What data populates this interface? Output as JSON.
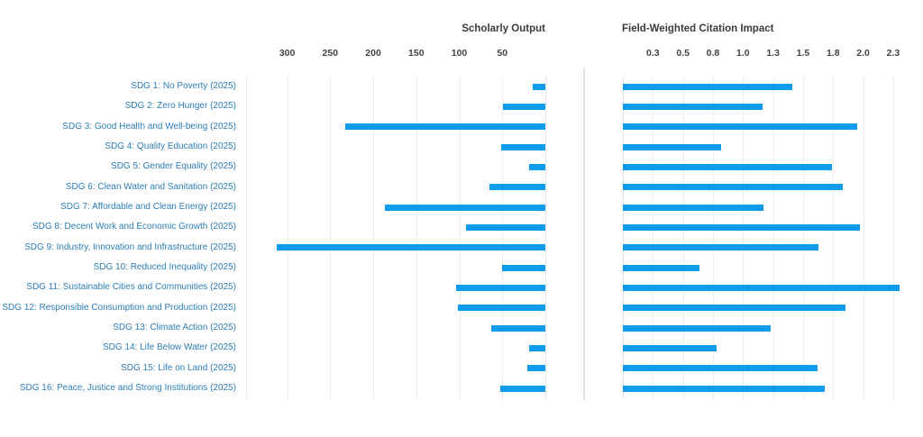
{
  "page": {
    "background": "#ffffff"
  },
  "colors": {
    "bar": "#0c9ceb",
    "category_label": "#2d7db4",
    "axis_text": "#3b3b3b",
    "gridline": "#ededed",
    "separator": "#e0e0e0"
  },
  "chart_data": {
    "type": "bar",
    "orientation": "horizontal",
    "grid": true,
    "legend": "none",
    "categories": [
      "SDG 1: No Poverty (2025)",
      "SDG 2: Zero Hunger (2025)",
      "SDG 3: Good Health and Well-being (2025)",
      "SDG 4: Quality Education (2025)",
      "SDG 5: Gender Equality (2025)",
      "SDG 6: Clean Water and Sanitation (2025)",
      "SDG 7: Affordable and Clean Energy (2025)",
      "SDG 8: Decent Work and Economic Growth (2025)",
      "SDG 9: Industry, Innovation and Infrastructure (2025)",
      "SDG 10: Reduced Inequality (2025)",
      "SDG 11: Sustainable Cities and Communities (2025)",
      "SDG 12: Responsible Consumption and Production (2025)",
      "SDG 13: Climate Action (2025)",
      "SDG 14: Life Below Water (2025)",
      "SDG 15: Life on Land (2025)",
      "SDG 16: Peace, Justice and Strong Institutions (2025)"
    ],
    "series": [
      {
        "name": "Scholarly Output",
        "axis_reversed": true,
        "xlim": [
          0,
          350
        ],
        "ticks": [
          {
            "label": "300",
            "value": 300
          },
          {
            "label": "250",
            "value": 250
          },
          {
            "label": "200",
            "value": 200
          },
          {
            "label": "150",
            "value": 150
          },
          {
            "label": "100",
            "value": 100
          },
          {
            "label": "50",
            "value": 50
          }
        ],
        "values": [
          15,
          49,
          233,
          51,
          19,
          65,
          186,
          92,
          312,
          50,
          104,
          102,
          63,
          19,
          21,
          52
        ]
      },
      {
        "name": "Field-Weighted Citation Impact",
        "axis_reversed": false,
        "xlim": [
          0,
          2.4
        ],
        "ticks": [
          {
            "label": "0.3",
            "value": 0.25
          },
          {
            "label": "0.5",
            "value": 0.5
          },
          {
            "label": "0.8",
            "value": 0.75
          },
          {
            "label": "1.0",
            "value": 1.0
          },
          {
            "label": "1.3",
            "value": 1.25
          },
          {
            "label": "1.5",
            "value": 1.5
          },
          {
            "label": "1.8",
            "value": 1.75
          },
          {
            "label": "2.0",
            "value": 2.0
          },
          {
            "label": "2.3",
            "value": 2.25
          }
        ],
        "values": [
          1.41,
          1.16,
          1.95,
          0.82,
          1.74,
          1.83,
          1.17,
          1.97,
          1.63,
          0.64,
          2.3,
          1.85,
          1.23,
          0.78,
          1.62,
          1.68
        ]
      }
    ]
  }
}
